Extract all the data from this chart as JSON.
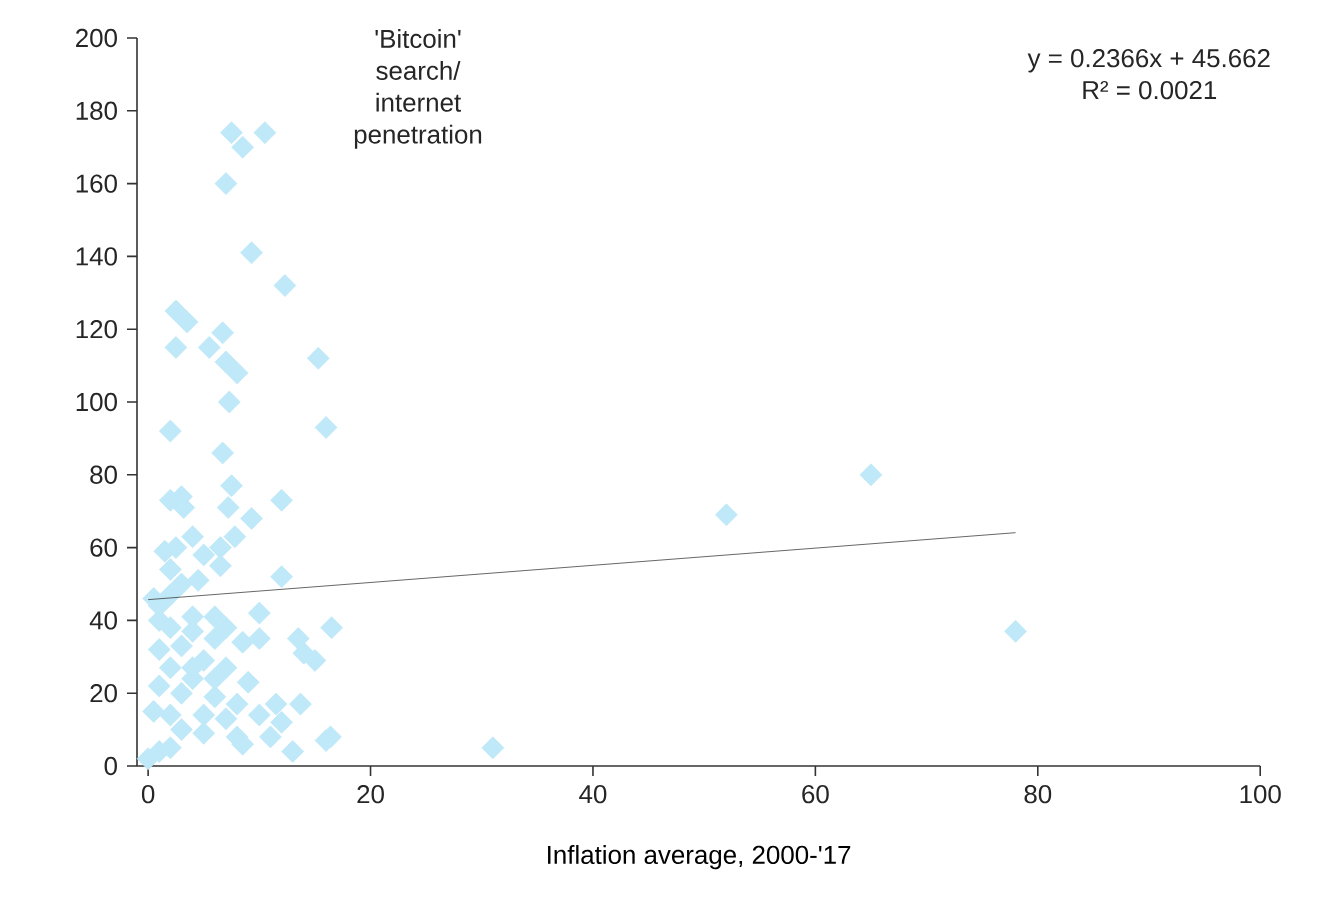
{
  "chart_data": {
    "type": "scatter",
    "ylabel": "'Bitcoin' search/ internet penetration",
    "xlabel": "Inflation average, 2000-'17",
    "annotations": [
      "y = 0.2366x + 45.662",
      "R² = 0.0021"
    ],
    "xlim": [
      -1,
      100
    ],
    "ylim": [
      0,
      200
    ],
    "xticks": [
      0,
      20,
      40,
      60,
      80,
      100
    ],
    "yticks": [
      0,
      20,
      40,
      60,
      80,
      100,
      120,
      140,
      160,
      180,
      200
    ],
    "marker": "diamond",
    "series": [
      {
        "color": "#bfe8f8",
        "x": [
          7.5,
          10.5,
          8.5,
          7,
          9.3,
          12.3,
          2.5,
          3.5,
          2.5,
          6.7,
          5.5,
          7,
          8,
          15.3,
          7.3,
          16,
          2,
          6.7,
          7.5,
          2,
          3.2,
          12,
          7.2,
          3,
          9.3,
          65,
          52,
          1.5,
          2.5,
          4,
          7.8,
          6.5,
          5,
          2,
          6.5,
          4.5,
          12,
          0.5,
          2,
          3,
          10,
          4,
          1,
          7,
          16.5,
          78,
          13.5,
          14,
          15,
          6,
          8.5,
          10,
          3,
          1,
          5,
          7,
          2,
          4,
          9,
          1,
          3,
          6,
          8,
          11.5,
          13.7,
          0.5,
          2,
          5,
          7,
          10,
          12,
          3,
          5,
          8,
          11,
          8.5,
          16,
          16.4,
          13,
          31,
          1,
          0,
          2,
          4,
          6,
          2,
          4,
          1,
          6
        ],
        "values": [
          174,
          174,
          170,
          160,
          141,
          132,
          125,
          122,
          115,
          119,
          115,
          111,
          108,
          112,
          100,
          93,
          92,
          86,
          77,
          73,
          71,
          73,
          71,
          74,
          68,
          80,
          69,
          59,
          60,
          63,
          63,
          60,
          58,
          54,
          55,
          51,
          52,
          46,
          47,
          50,
          42,
          41,
          40,
          38,
          38,
          37,
          35,
          31,
          29,
          35,
          34,
          35,
          33,
          32,
          29,
          27,
          27,
          24,
          23,
          22,
          20,
          19,
          17,
          17,
          17,
          15,
          14,
          14,
          13,
          14,
          12,
          10,
          9,
          8,
          8,
          6,
          7,
          8,
          4,
          5,
          4,
          2,
          5,
          27,
          24,
          38,
          37,
          44,
          41
        ]
      },
      {
        "type": "line",
        "color": "#404040",
        "marker": "none",
        "x": [
          0,
          78
        ],
        "values": [
          45.7,
          64.1
        ]
      }
    ]
  }
}
